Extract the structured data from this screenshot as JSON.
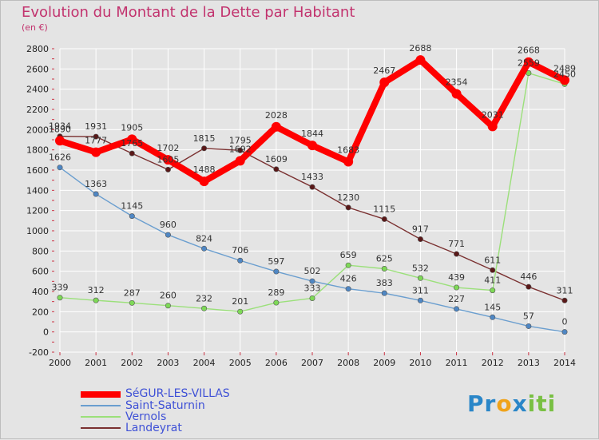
{
  "title": "Evolution du Montant de la Dette par Habitant",
  "subtitle": "(en €)",
  "logo_text": "Proxiti",
  "colors": {
    "background": "#e4e4e4",
    "grid": "#ffffff",
    "title": "#c2336e",
    "legend_text": "#3f51d6"
  },
  "chart_data": {
    "type": "line",
    "x": [
      "2000",
      "2001",
      "2002",
      "2003",
      "2004",
      "2005",
      "2006",
      "2007",
      "2008",
      "2009",
      "2010",
      "2011",
      "2012",
      "2013",
      "2014"
    ],
    "ylim": [
      -200,
      2800
    ],
    "yticks": [
      -200,
      0,
      200,
      400,
      600,
      800,
      1000,
      1200,
      1400,
      1600,
      1800,
      2000,
      2200,
      2400,
      2600,
      2800
    ],
    "grid": true,
    "legend_position": "bottom-left",
    "series": [
      {
        "name": "SéGUR-LES-VILLAS",
        "color": "#ff0000",
        "marker": "#ff0000",
        "width": 8,
        "values": [
          1890,
          1777,
          1905,
          1702,
          1488,
          1692,
          2028,
          1844,
          1683,
          2467,
          2688,
          2354,
          2031,
          2668,
          2489
        ],
        "labels": [
          "1890",
          "1777",
          "1905",
          "1702",
          "1488",
          "1692",
          "2028",
          "1844",
          "1683",
          "2467",
          "2688",
          "2354",
          "2031",
          "2668",
          "2489"
        ]
      },
      {
        "name": "Saint-Saturnin",
        "color": "#6a9ecf",
        "marker": "#4f87c4",
        "width": 1.4,
        "values": [
          1626,
          1363,
          1145,
          960,
          824,
          706,
          597,
          502,
          426,
          383,
          311,
          227,
          145,
          57,
          0
        ],
        "labels": [
          "1626",
          "1363",
          "1145",
          "960",
          "824",
          "706",
          "597",
          "502",
          "426",
          "383",
          "311",
          "227",
          "145",
          "57",
          "0"
        ]
      },
      {
        "name": "Vernols",
        "color": "#9be07a",
        "marker": "#7ed957",
        "width": 1.4,
        "values": [
          339,
          312,
          287,
          260,
          232,
          201,
          289,
          333,
          659,
          625,
          532,
          439,
          411,
          2559,
          2450
        ],
        "labels": [
          "339",
          "312",
          "287",
          "260",
          "232",
          "201",
          "289",
          "333",
          "659",
          "625",
          "532",
          "439",
          "411",
          "2559",
          "2450"
        ]
      },
      {
        "name": "Landeyrat",
        "color": "#7a3030",
        "marker": "#5a1818",
        "width": 1.4,
        "values": [
          1934,
          1931,
          1765,
          1605,
          1815,
          1795,
          1609,
          1433,
          1230,
          1115,
          917,
          771,
          611,
          446,
          311
        ],
        "labels": [
          "1934",
          "1931",
          "1765",
          "1605",
          "1815",
          "1795",
          "1609",
          "1433",
          "1230",
          "1115",
          "917",
          "771",
          "611",
          "446",
          "311"
        ]
      }
    ]
  }
}
